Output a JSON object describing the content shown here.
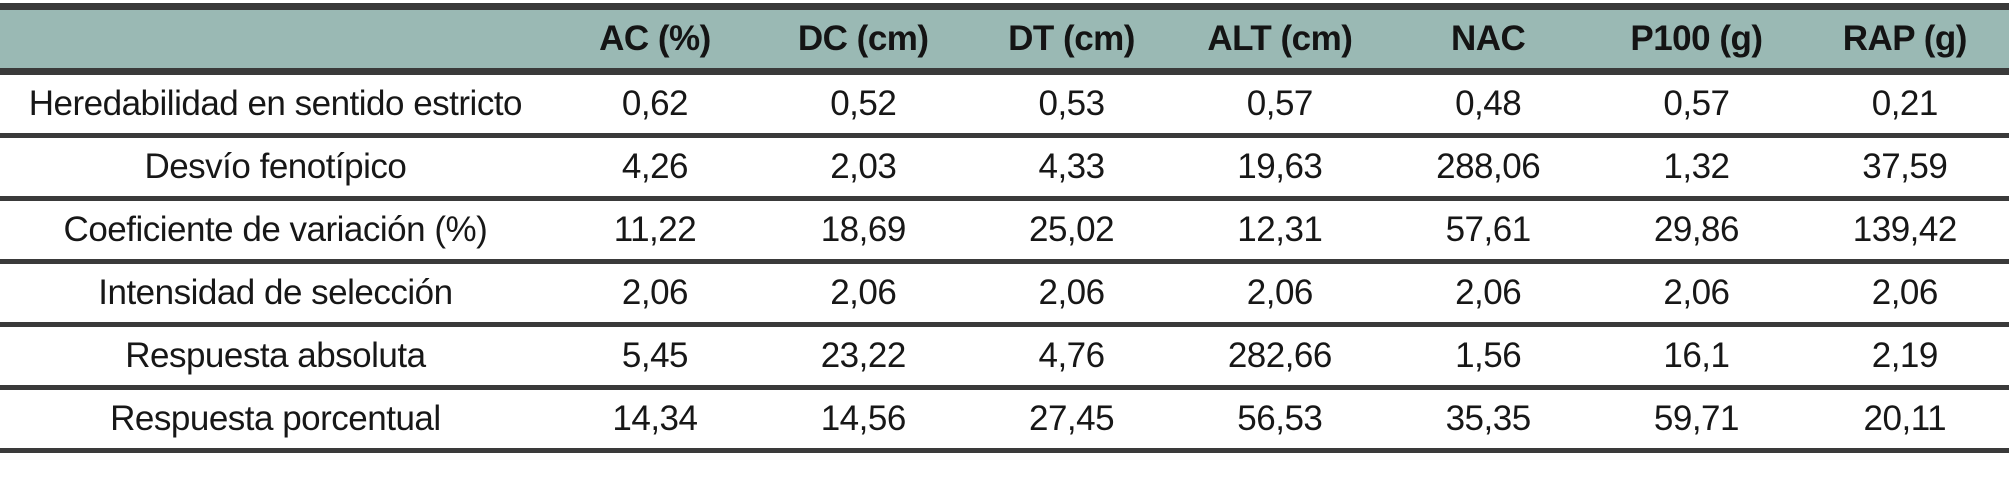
{
  "table": {
    "columns": [
      "",
      "AC (%)",
      "DC (cm)",
      "DT (cm)",
      "ALT (cm)",
      "NAC",
      "P100 (g)",
      "RAP (g)"
    ],
    "rows": [
      {
        "label": "Heredabilidad en sentido estricto",
        "values": [
          "0,62",
          "0,52",
          "0,53",
          "0,57",
          "0,48",
          "0,57",
          "0,21"
        ]
      },
      {
        "label": "Desvío fenotípico",
        "values": [
          "4,26",
          "2,03",
          "4,33",
          "19,63",
          "288,06",
          "1,32",
          "37,59"
        ]
      },
      {
        "label": "Coeficiente de variación (%)",
        "values": [
          "11,22",
          "18,69",
          "25,02",
          "12,31",
          "57,61",
          "29,86",
          "139,42"
        ]
      },
      {
        "label": "Intensidad de selección",
        "values": [
          "2,06",
          "2,06",
          "2,06",
          "2,06",
          "2,06",
          "2,06",
          "2,06"
        ]
      },
      {
        "label": "Respuesta absoluta",
        "values": [
          "5,45",
          "23,22",
          "4,76",
          "282,66",
          "1,56",
          "16,1",
          "2,19"
        ]
      },
      {
        "label": "Respuesta porcentual",
        "values": [
          "14,34",
          "14,56",
          "27,45",
          "56,53",
          "35,35",
          "59,71",
          "20,11"
        ]
      }
    ]
  },
  "colors": {
    "header_bg": "#9ab9b4",
    "border": "#3a3a3a",
    "text": "#171717"
  },
  "chart_data": {
    "type": "table",
    "title": "",
    "categories": [
      "AC (%)",
      "DC (cm)",
      "DT (cm)",
      "ALT (cm)",
      "NAC",
      "P100 (g)",
      "RAP (g)"
    ],
    "series": [
      {
        "name": "Heredabilidad en sentido estricto",
        "values": [
          0.62,
          0.52,
          0.53,
          0.57,
          0.48,
          0.57,
          0.21
        ]
      },
      {
        "name": "Desvío fenotípico",
        "values": [
          4.26,
          2.03,
          4.33,
          19.63,
          288.06,
          1.32,
          37.59
        ]
      },
      {
        "name": "Coeficiente de variación (%)",
        "values": [
          11.22,
          18.69,
          25.02,
          12.31,
          57.61,
          29.86,
          139.42
        ]
      },
      {
        "name": "Intensidad de selección",
        "values": [
          2.06,
          2.06,
          2.06,
          2.06,
          2.06,
          2.06,
          2.06
        ]
      },
      {
        "name": "Respuesta absoluta",
        "values": [
          5.45,
          23.22,
          4.76,
          282.66,
          1.56,
          16.1,
          2.19
        ]
      },
      {
        "name": "Respuesta porcentual",
        "values": [
          14.34,
          14.56,
          27.45,
          56.53,
          35.35,
          59.71,
          20.11
        ]
      }
    ]
  }
}
